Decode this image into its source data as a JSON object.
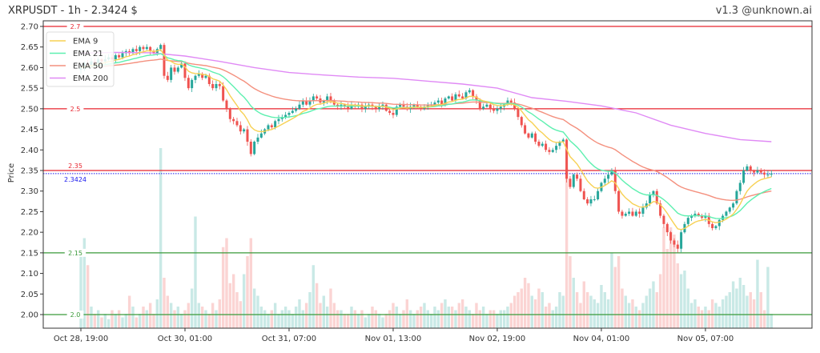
{
  "header": {
    "title": "XRPUSDT - 1h - 2.3424 $",
    "version": "v1.3 @unknown.ai"
  },
  "chart_data": {
    "type": "candlestick",
    "symbol": "XRPUSDT",
    "interval": "1h",
    "last_price": 2.3424,
    "ylabel": "Price",
    "ylim": [
      1.967,
      2.714
    ],
    "y_ticks": [
      "2.00",
      "2.05",
      "2.10",
      "2.15",
      "2.20",
      "2.25",
      "2.30",
      "2.35",
      "2.40",
      "2.45",
      "2.50",
      "2.55",
      "2.60",
      "2.65",
      "2.70"
    ],
    "x_ticks": [
      {
        "candle": 0,
        "label": "Oct 28, 19:00"
      },
      {
        "candle": 30,
        "label": "Oct 30, 01:00"
      },
      {
        "candle": 60,
        "label": "Oct 31, 07:00"
      },
      {
        "candle": 90,
        "label": "Nov 01, 13:00"
      },
      {
        "candle": 120,
        "label": "Nov 02, 19:00"
      },
      {
        "candle": 150,
        "label": "Nov 04, 01:00"
      },
      {
        "candle": 180,
        "label": "Nov 05, 07:00"
      }
    ],
    "grid": false,
    "legend_position": "top-left",
    "colors": {
      "up": "#26a69a",
      "down": "#ef5350",
      "ema_9": "#f7d154",
      "ema_21": "#5ef0b0",
      "ema_50": "#f4907e",
      "ema_200": "#e08af5",
      "resistance": "#e8252f",
      "support": "#3a9a3a",
      "last_price": "#1a1aee"
    },
    "closes": [
      2.6,
      2.61,
      2.605,
      2.615,
      2.61,
      2.62,
      2.615,
      2.62,
      2.625,
      2.62,
      2.63,
      2.625,
      2.635,
      2.64,
      2.635,
      2.645,
      2.64,
      2.65,
      2.645,
      2.65,
      2.64,
      2.635,
      2.645,
      2.655,
      2.58,
      2.57,
      2.6,
      2.59,
      2.6,
      2.61,
      2.575,
      2.55,
      2.57,
      2.58,
      2.585,
      2.575,
      2.58,
      2.56,
      2.55,
      2.56,
      2.555,
      2.52,
      2.5,
      2.475,
      2.47,
      2.46,
      2.445,
      2.45,
      2.42,
      2.39,
      2.42,
      2.43,
      2.44,
      2.45,
      2.46,
      2.455,
      2.47,
      2.475,
      2.48,
      2.485,
      2.49,
      2.495,
      2.5,
      2.51,
      2.52,
      2.51,
      2.52,
      2.53,
      2.525,
      2.515,
      2.52,
      2.53,
      2.52,
      2.51,
      2.505,
      2.51,
      2.505,
      2.5,
      2.51,
      2.505,
      2.51,
      2.5,
      2.505,
      2.51,
      2.505,
      2.5,
      2.505,
      2.51,
      2.495,
      2.49,
      2.485,
      2.505,
      2.51,
      2.505,
      2.5,
      2.505,
      2.51,
      2.505,
      2.5,
      2.505,
      2.51,
      2.51,
      2.515,
      2.52,
      2.51,
      2.525,
      2.53,
      2.52,
      2.535,
      2.53,
      2.525,
      2.54,
      2.545,
      2.53,
      2.52,
      2.5,
      2.505,
      2.51,
      2.5,
      2.495,
      2.5,
      2.505,
      2.51,
      2.52,
      2.515,
      2.5,
      2.48,
      2.46,
      2.44,
      2.43,
      2.44,
      2.42,
      2.41,
      2.415,
      2.4,
      2.395,
      2.4,
      2.41,
      2.42,
      2.425,
      2.33,
      2.31,
      2.34,
      2.33,
      2.3,
      2.28,
      2.27,
      2.28,
      2.28,
      2.3,
      2.32,
      2.33,
      2.34,
      2.35,
      2.3,
      2.25,
      2.24,
      2.245,
      2.25,
      2.24,
      2.25,
      2.245,
      2.26,
      2.27,
      2.29,
      2.3,
      2.27,
      2.24,
      2.22,
      2.2,
      2.18,
      2.17,
      2.16,
      2.2,
      2.22,
      2.235,
      2.24,
      2.245,
      2.24,
      2.235,
      2.24,
      2.22,
      2.21,
      2.215,
      2.23,
      2.24,
      2.25,
      2.26,
      2.27,
      2.3,
      2.32,
      2.35,
      2.36,
      2.35,
      2.345,
      2.35,
      2.345,
      2.34,
      2.34,
      2.3424
    ],
    "volumes": [
      40,
      50,
      35,
      12,
      8,
      10,
      6,
      8,
      5,
      10,
      8,
      10,
      6,
      8,
      18,
      12,
      6,
      8,
      12,
      10,
      14,
      8,
      16,
      100,
      28,
      18,
      14,
      10,
      12,
      8,
      10,
      14,
      22,
      62,
      14,
      12,
      10,
      8,
      14,
      10,
      16,
      45,
      50,
      25,
      30,
      20,
      15,
      30,
      40,
      50,
      22,
      18,
      12,
      10,
      8,
      10,
      14,
      8,
      10,
      12,
      10,
      8,
      12,
      16,
      10,
      14,
      20,
      35,
      25,
      14,
      18,
      12,
      22,
      14,
      10,
      10,
      8,
      8,
      12,
      10,
      8,
      10,
      6,
      8,
      12,
      10,
      8,
      6,
      8,
      10,
      14,
      12,
      8,
      10,
      16,
      10,
      8,
      10,
      12,
      14,
      10,
      8,
      12,
      10,
      14,
      16,
      12,
      12,
      10,
      14,
      16,
      12,
      10,
      8,
      14,
      10,
      12,
      8,
      10,
      10,
      8,
      10,
      10,
      12,
      14,
      18,
      20,
      22,
      28,
      25,
      18,
      16,
      22,
      20,
      12,
      14,
      10,
      12,
      20,
      18,
      89,
      40,
      28,
      20,
      14,
      26,
      20,
      18,
      16,
      14,
      24,
      20,
      16,
      42,
      34,
      40,
      22,
      18,
      14,
      16,
      12,
      10,
      14,
      18,
      22,
      26,
      20,
      30,
      56,
      44,
      56,
      52,
      36,
      30,
      32,
      22,
      14,
      16,
      12,
      10,
      12,
      10,
      16,
      14,
      12,
      16,
      18,
      20,
      26,
      22,
      28,
      24,
      18,
      20,
      16,
      38,
      20,
      10,
      34,
      8
    ],
    "ema_200": {
      "step_candles": 10,
      "values": [
        2.635,
        2.637,
        2.636,
        2.628,
        2.615,
        2.6,
        2.588,
        2.582,
        2.577,
        2.574,
        2.567,
        2.56,
        2.55,
        2.527,
        2.518,
        2.507,
        2.49,
        2.46,
        2.44,
        2.425,
        2.42
      ]
    },
    "legend": [
      {
        "name": "EMA 9",
        "period": 9,
        "color_key": "ema_9"
      },
      {
        "name": "EMA 21",
        "period": 21,
        "color_key": "ema_21"
      },
      {
        "name": "EMA 50",
        "period": 50,
        "color_key": "ema_50"
      },
      {
        "name": "EMA 200",
        "period": 200,
        "color_key": "ema_200"
      }
    ],
    "levels": [
      {
        "value": 2.7,
        "label": "2.7",
        "kind": "resistance"
      },
      {
        "value": 2.5,
        "label": "2.5",
        "kind": "resistance"
      },
      {
        "value": 2.35,
        "label": "2.35",
        "kind": "resistance"
      },
      {
        "value": 2.15,
        "label": "2.15",
        "kind": "support"
      },
      {
        "value": 2.0,
        "label": "2.0",
        "kind": "support"
      },
      {
        "value": 2.3424,
        "label": "2.3424",
        "kind": "last_price"
      }
    ]
  }
}
